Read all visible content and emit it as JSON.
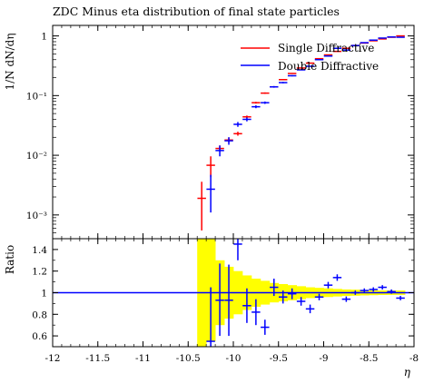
{
  "chart_data": [
    {
      "type": "scatter",
      "panel": "main",
      "title": "ZDC Minus eta distribution of final state particles",
      "ylabel": "1/N dN/dη",
      "yscale": "log",
      "ylim": [
        0.0004,
        1.5
      ],
      "xlim": [
        -12,
        -8
      ],
      "yticks": [
        {
          "v": 0.001,
          "label": "10⁻³"
        },
        {
          "v": 0.01,
          "label": "10⁻²"
        },
        {
          "v": 0.1,
          "label": "10⁻¹"
        },
        {
          "v": 1,
          "label": "1"
        }
      ],
      "legend_position": "top-right",
      "series": [
        {
          "name": "Single Diffractive",
          "color": "#ff0000",
          "points": [
            {
              "x": -10.35,
              "y": 0.0019,
              "ylo": 0.00055,
              "yhi": 0.0036
            },
            {
              "x": -10.25,
              "y": 0.0068,
              "ylo": 0.0043,
              "yhi": 0.0096
            },
            {
              "x": -10.15,
              "y": 0.013,
              "ylo": 0.0116,
              "yhi": 0.0146
            },
            {
              "x": -10.05,
              "y": 0.018,
              "ylo": 0.0164,
              "yhi": 0.0197
            },
            {
              "x": -9.95,
              "y": 0.023,
              "ylo": 0.0213,
              "yhi": 0.0248
            },
            {
              "x": -9.85,
              "y": 0.044,
              "ylo": 0.0418,
              "yhi": 0.0463
            },
            {
              "x": -9.75,
              "y": 0.076,
              "ylo": 0.0735,
              "yhi": 0.0786
            },
            {
              "x": -9.65,
              "y": 0.11,
              "ylo": 0.107,
              "yhi": 0.113
            },
            {
              "x": -9.55,
              "y": 0.14,
              "ylo": 0.137,
              "yhi": 0.143
            },
            {
              "x": -9.45,
              "y": 0.185,
              "ylo": 0.1815,
              "yhi": 0.1885
            },
            {
              "x": -9.35,
              "y": 0.235,
              "ylo": 0.231,
              "yhi": 0.239
            },
            {
              "x": -9.25,
              "y": 0.29,
              "ylo": 0.286,
              "yhi": 0.294
            },
            {
              "x": -9.15,
              "y": 0.35,
              "ylo": 0.346,
              "yhi": 0.354
            },
            {
              "x": -9.05,
              "y": 0.415,
              "ylo": 0.411,
              "yhi": 0.419
            },
            {
              "x": -8.95,
              "y": 0.48,
              "ylo": 0.476,
              "yhi": 0.484
            },
            {
              "x": -8.85,
              "y": 0.55,
              "ylo": 0.546,
              "yhi": 0.554
            },
            {
              "x": -8.75,
              "y": 0.62,
              "ylo": 0.616,
              "yhi": 0.624
            },
            {
              "x": -8.65,
              "y": 0.69,
              "ylo": 0.686,
              "yhi": 0.694
            },
            {
              "x": -8.55,
              "y": 0.76,
              "ylo": 0.756,
              "yhi": 0.764
            },
            {
              "x": -8.45,
              "y": 0.83,
              "ylo": 0.826,
              "yhi": 0.834
            },
            {
              "x": -8.35,
              "y": 0.89,
              "ylo": 0.886,
              "yhi": 0.894
            },
            {
              "x": -8.25,
              "y": 0.95,
              "ylo": 0.946,
              "yhi": 0.954
            },
            {
              "x": -8.15,
              "y": 1.0,
              "ylo": 0.996,
              "yhi": 1.004
            }
          ]
        },
        {
          "name": "Double Diffractive",
          "color": "#0000ff",
          "points": [
            {
              "x": -10.25,
              "y": 0.0027,
              "ylo": 0.0011,
              "yhi": 0.0047
            },
            {
              "x": -10.15,
              "y": 0.012,
              "ylo": 0.0096,
              "yhi": 0.0146
            },
            {
              "x": -10.05,
              "y": 0.0175,
              "ylo": 0.015,
              "yhi": 0.0201
            },
            {
              "x": -9.95,
              "y": 0.033,
              "ylo": 0.03,
              "yhi": 0.0361
            },
            {
              "x": -9.85,
              "y": 0.04,
              "ylo": 0.037,
              "yhi": 0.0431
            },
            {
              "x": -9.75,
              "y": 0.065,
              "ylo": 0.0615,
              "yhi": 0.0686
            },
            {
              "x": -9.65,
              "y": 0.076,
              "ylo": 0.0725,
              "yhi": 0.0796
            },
            {
              "x": -9.55,
              "y": 0.14,
              "ylo": 0.1355,
              "yhi": 0.1446
            },
            {
              "x": -9.45,
              "y": 0.165,
              "ylo": 0.1605,
              "yhi": 0.1696
            },
            {
              "x": -9.35,
              "y": 0.215,
              "ylo": 0.21,
              "yhi": 0.22
            },
            {
              "x": -9.25,
              "y": 0.27,
              "ylo": 0.265,
              "yhi": 0.275
            },
            {
              "x": -9.15,
              "y": 0.31,
              "ylo": 0.305,
              "yhi": 0.315
            },
            {
              "x": -9.05,
              "y": 0.4,
              "ylo": 0.395,
              "yhi": 0.405
            },
            {
              "x": -8.95,
              "y": 0.46,
              "ylo": 0.455,
              "yhi": 0.465
            },
            {
              "x": -8.85,
              "y": 0.62,
              "ylo": 0.615,
              "yhi": 0.625
            },
            {
              "x": -8.75,
              "y": 0.58,
              "ylo": 0.575,
              "yhi": 0.585
            },
            {
              "x": -8.65,
              "y": 0.69,
              "ylo": 0.685,
              "yhi": 0.695
            },
            {
              "x": -8.55,
              "y": 0.77,
              "ylo": 0.765,
              "yhi": 0.775
            },
            {
              "x": -8.45,
              "y": 0.85,
              "ylo": 0.845,
              "yhi": 0.855
            },
            {
              "x": -8.35,
              "y": 0.92,
              "ylo": 0.915,
              "yhi": 0.925
            },
            {
              "x": -8.25,
              "y": 0.96,
              "ylo": 0.955,
              "yhi": 0.965
            },
            {
              "x": -8.15,
              "y": 0.95,
              "ylo": 0.945,
              "yhi": 0.955
            }
          ]
        }
      ]
    },
    {
      "type": "scatter",
      "panel": "ratio",
      "ylabel": "Ratio",
      "xlabel": "η",
      "xlim": [
        -12,
        -8
      ],
      "ylim": [
        0.5,
        1.5
      ],
      "xticks": [
        -12,
        -11.5,
        -11,
        -10.5,
        -10,
        -9.5,
        -9,
        -8.5,
        -8
      ],
      "xtick_labels": [
        "-12",
        "-11.5",
        "-11",
        "-10.5",
        "-10",
        "-9.5",
        "-9",
        "-8.5",
        "-8"
      ],
      "yticks": [
        0.6,
        0.8,
        1,
        1.2,
        1.4
      ],
      "ytick_labels": [
        "0.6",
        "0.8",
        "1",
        "1.2",
        "1.4"
      ],
      "reference_line": 1,
      "reference_color": "#0000ff",
      "band_color": "#ffff00",
      "band": [
        {
          "x0": -10.4,
          "x1": -10.3,
          "lo": 0.5,
          "hi": 1.5
        },
        {
          "x0": -10.3,
          "x1": -10.2,
          "lo": 0.55,
          "hi": 1.5
        },
        {
          "x0": -10.2,
          "x1": -10.1,
          "lo": 0.7,
          "hi": 1.3
        },
        {
          "x0": -10.1,
          "x1": -10.0,
          "lo": 0.76,
          "hi": 1.24
        },
        {
          "x0": -10.0,
          "x1": -9.9,
          "lo": 0.8,
          "hi": 1.2
        },
        {
          "x0": -9.9,
          "x1": -9.8,
          "lo": 0.84,
          "hi": 1.16
        },
        {
          "x0": -9.8,
          "x1": -9.7,
          "lo": 0.87,
          "hi": 1.13
        },
        {
          "x0": -9.7,
          "x1": -9.6,
          "lo": 0.89,
          "hi": 1.11
        },
        {
          "x0": -9.6,
          "x1": -9.5,
          "lo": 0.91,
          "hi": 1.09
        },
        {
          "x0": -9.5,
          "x1": -9.4,
          "lo": 0.92,
          "hi": 1.08
        },
        {
          "x0": -9.4,
          "x1": -9.3,
          "lo": 0.93,
          "hi": 1.07
        },
        {
          "x0": -9.3,
          "x1": -9.2,
          "lo": 0.94,
          "hi": 1.06
        },
        {
          "x0": -9.2,
          "x1": -9.1,
          "lo": 0.95,
          "hi": 1.05
        },
        {
          "x0": -9.1,
          "x1": -9.0,
          "lo": 0.955,
          "hi": 1.045
        },
        {
          "x0": -9.0,
          "x1": -8.9,
          "lo": 0.96,
          "hi": 1.04
        },
        {
          "x0": -8.9,
          "x1": -8.8,
          "lo": 0.965,
          "hi": 1.035
        },
        {
          "x0": -8.8,
          "x1": -8.7,
          "lo": 0.97,
          "hi": 1.03
        },
        {
          "x0": -8.7,
          "x1": -8.6,
          "lo": 0.972,
          "hi": 1.028
        },
        {
          "x0": -8.6,
          "x1": -8.5,
          "lo": 0.975,
          "hi": 1.025
        },
        {
          "x0": -8.5,
          "x1": -8.4,
          "lo": 0.977,
          "hi": 1.023
        },
        {
          "x0": -8.4,
          "x1": -8.3,
          "lo": 0.979,
          "hi": 1.021
        },
        {
          "x0": -8.3,
          "x1": -8.2,
          "lo": 0.98,
          "hi": 1.02
        },
        {
          "x0": -8.2,
          "x1": -8.1,
          "lo": 0.98,
          "hi": 1.02
        }
      ],
      "series": [
        {
          "name": "Double Diffractive",
          "color": "#0000ff",
          "points": [
            {
              "x": -10.25,
              "y": 0.55,
              "ylo": 0.5,
              "yhi": 1.05
            },
            {
              "x": -10.15,
              "y": 0.93,
              "ylo": 0.6,
              "yhi": 1.27
            },
            {
              "x": -10.05,
              "y": 0.93,
              "ylo": 0.6,
              "yhi": 1.26
            },
            {
              "x": -9.95,
              "y": 1.45,
              "ylo": 1.3,
              "yhi": 1.5
            },
            {
              "x": -9.85,
              "y": 0.88,
              "ylo": 0.72,
              "yhi": 1.04
            },
            {
              "x": -9.75,
              "y": 0.82,
              "ylo": 0.7,
              "yhi": 0.94
            },
            {
              "x": -9.65,
              "y": 0.68,
              "ylo": 0.61,
              "yhi": 0.75
            },
            {
              "x": -9.55,
              "y": 1.05,
              "ylo": 0.97,
              "yhi": 1.13
            },
            {
              "x": -9.45,
              "y": 0.96,
              "ylo": 0.9,
              "yhi": 1.02
            },
            {
              "x": -9.35,
              "y": 0.99,
              "ylo": 0.94,
              "yhi": 1.04
            },
            {
              "x": -9.25,
              "y": 0.92,
              "ylo": 0.88,
              "yhi": 0.96
            },
            {
              "x": -9.15,
              "y": 0.85,
              "ylo": 0.81,
              "yhi": 0.89
            },
            {
              "x": -9.05,
              "y": 0.96,
              "ylo": 0.93,
              "yhi": 0.99
            },
            {
              "x": -8.95,
              "y": 1.07,
              "ylo": 1.04,
              "yhi": 1.1
            },
            {
              "x": -8.85,
              "y": 1.14,
              "ylo": 1.11,
              "yhi": 1.17
            },
            {
              "x": -8.75,
              "y": 0.94,
              "ylo": 0.915,
              "yhi": 0.965
            },
            {
              "x": -8.65,
              "y": 1.0,
              "ylo": 0.98,
              "yhi": 1.02
            },
            {
              "x": -8.55,
              "y": 1.02,
              "ylo": 1.0,
              "yhi": 1.04
            },
            {
              "x": -8.45,
              "y": 1.03,
              "ylo": 1.01,
              "yhi": 1.05
            },
            {
              "x": -8.35,
              "y": 1.05,
              "ylo": 1.03,
              "yhi": 1.07
            },
            {
              "x": -8.25,
              "y": 1.01,
              "ylo": 0.99,
              "yhi": 1.03
            },
            {
              "x": -8.15,
              "y": 0.95,
              "ylo": 0.93,
              "yhi": 0.97
            }
          ]
        }
      ]
    }
  ]
}
